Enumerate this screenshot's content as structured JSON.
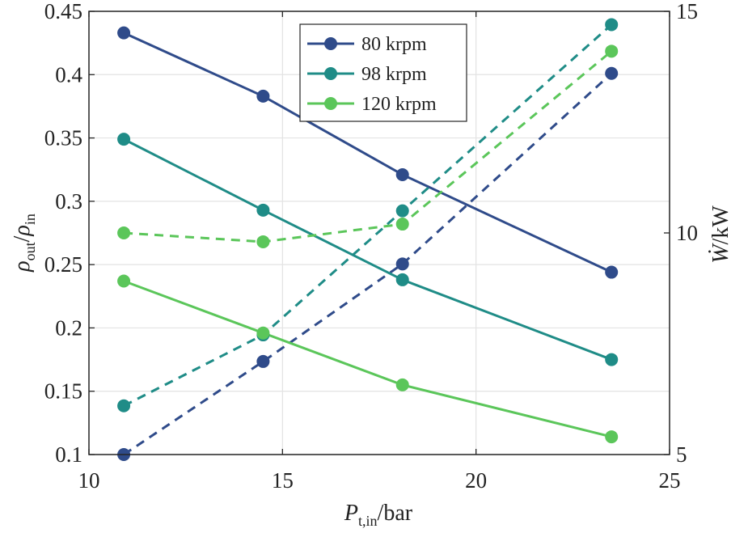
{
  "chart_data": {
    "type": "line",
    "xlabel": "P_t,in/bar",
    "ylabel_left": "ρ_out/ρ_in",
    "ylabel_right": "Ẇ/kW",
    "xlim": [
      10,
      25
    ],
    "ylim_left": [
      0.1,
      0.45
    ],
    "ylim_right": [
      5,
      15
    ],
    "x_ticks": [
      10,
      15,
      20,
      25
    ],
    "x_tick_labels": [
      "10",
      "15",
      "20",
      "25"
    ],
    "y_left_ticks": [
      0.1,
      0.15,
      0.2,
      0.25,
      0.3,
      0.35,
      0.4,
      0.45
    ],
    "y_left_tick_labels": [
      "0.1",
      "0.15",
      "0.2",
      "0.25",
      "0.3",
      "0.35",
      "0.4",
      "0.45"
    ],
    "y_right_ticks": [
      5,
      10,
      15
    ],
    "y_right_tick_labels": [
      "5",
      "10",
      "15"
    ],
    "grid": true,
    "legend_position": "top-center",
    "x": [
      10.9,
      14.5,
      18.1,
      23.5
    ],
    "series": [
      {
        "name": "80 krpm",
        "color": "#2f4b8a",
        "density_ratio": [
          0.433,
          0.383,
          0.321,
          0.244
        ],
        "power_kW": [
          5.0,
          7.1,
          9.3,
          13.6
        ]
      },
      {
        "name": "98 krpm",
        "color": "#1f8c87",
        "density_ratio": [
          0.349,
          0.293,
          0.238,
          0.175
        ],
        "power_kW": [
          6.1,
          7.7,
          10.5,
          14.7
        ]
      },
      {
        "name": "120 krpm",
        "color": "#5bc65a",
        "density_ratio": [
          0.237,
          0.196,
          0.155,
          0.114
        ],
        "power_kW": [
          10.0,
          9.8,
          10.2,
          14.1
        ]
      }
    ]
  }
}
